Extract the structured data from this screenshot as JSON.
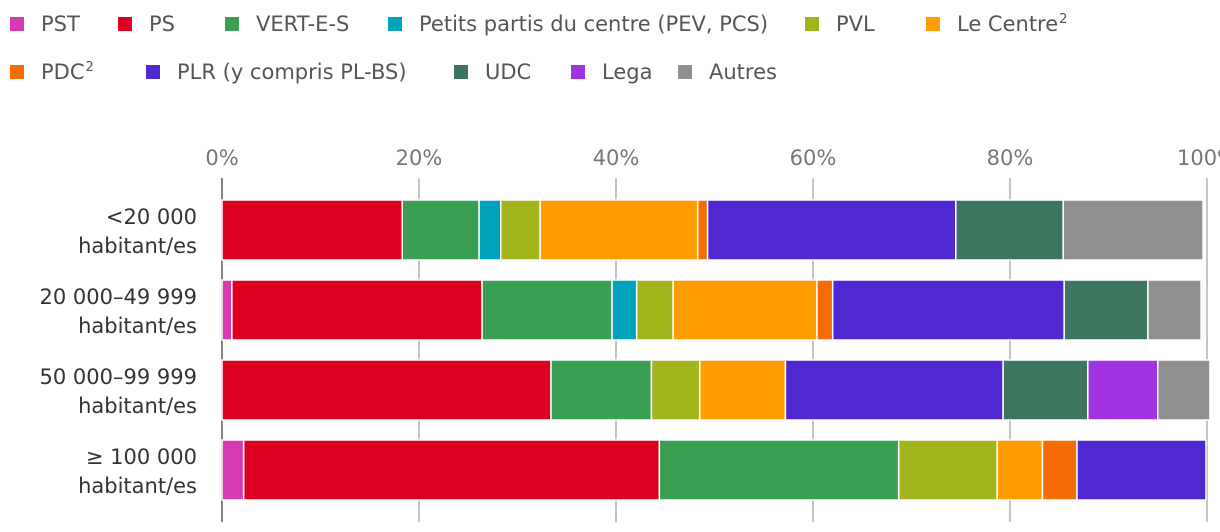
{
  "chart_data": {
    "type": "bar",
    "orientation": "horizontal",
    "stacked": true,
    "xlim": [
      0,
      100
    ],
    "xticks": [
      "0%",
      "20%",
      "40%",
      "60%",
      "80%",
      "100%"
    ],
    "grid": true,
    "legend_position": "top",
    "categories": [
      {
        "line1": "<20 000",
        "line2": "habitant/es"
      },
      {
        "line1": "20 000–49 999",
        "line2": "habitant/es"
      },
      {
        "line1": "50 000–99 999",
        "line2": "habitant/es"
      },
      {
        "line1": "≥ 100 000",
        "line2": "habitant/es"
      }
    ],
    "series": [
      {
        "name": "PST",
        "sup": "",
        "color": "#d63ab3",
        "values": [
          0,
          1.0,
          0,
          2.2
        ]
      },
      {
        "name": "PS",
        "sup": "",
        "color": "#dc0021",
        "values": [
          18.3,
          25.4,
          33.4,
          42.2
        ]
      },
      {
        "name": "VERT-E-S",
        "sup": "",
        "color": "#3a9f50",
        "values": [
          7.8,
          13.2,
          10.2,
          24.3
        ]
      },
      {
        "name": "Petits partis du centre (PEV, PCS)",
        "sup": "",
        "color": "#00a3bb",
        "values": [
          2.2,
          2.5,
          0,
          0
        ]
      },
      {
        "name": "PVL",
        "sup": "",
        "color": "#a2b51d",
        "values": [
          4.0,
          3.7,
          4.9,
          10.0
        ]
      },
      {
        "name": "Le Centre",
        "sup": "2",
        "color": "#ff9d00",
        "values": [
          16.0,
          14.6,
          8.7,
          4.6
        ]
      },
      {
        "name": "PDC",
        "sup": "2",
        "color": "#f56b05",
        "values": [
          1.0,
          1.6,
          0,
          3.5
        ]
      },
      {
        "name": "PLR (y compris PL-BS)",
        "sup": "",
        "color": "#5028d2",
        "values": [
          25.2,
          23.5,
          22.1,
          13.1
        ]
      },
      {
        "name": "UDC",
        "sup": "",
        "color": "#3c765f",
        "values": [
          10.9,
          8.5,
          8.6,
          0
        ]
      },
      {
        "name": "Lega",
        "sup": "",
        "color": "#a033e0",
        "values": [
          0,
          0,
          7.1,
          0
        ]
      },
      {
        "name": "Autres",
        "sup": "",
        "color": "#8f8f8f",
        "values": [
          14.2,
          5.4,
          5.3,
          0
        ]
      }
    ]
  }
}
